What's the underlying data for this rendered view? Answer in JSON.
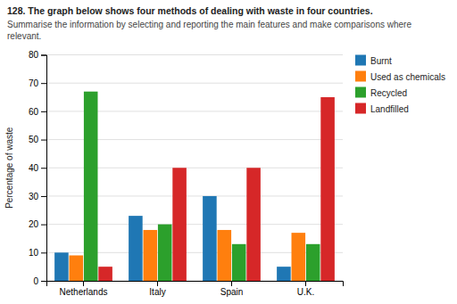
{
  "chart_data": {
    "type": "bar",
    "title": "128. The graph below shows four methods of dealing with waste in four countries.",
    "subtitle": "Summarise the information by selecting and reporting the main features and make comparisons where relevant.",
    "y_label": "Percentage of waste",
    "categories": [
      "Netherlands",
      "Italy",
      "Spain",
      "U.K."
    ],
    "series": [
      {
        "name": "Burnt",
        "values": [
          10,
          23,
          30,
          5
        ]
      },
      {
        "name": "Used as chemicals",
        "values": [
          9,
          18,
          18,
          17
        ]
      },
      {
        "name": "Recycled",
        "values": [
          67,
          20,
          13,
          13
        ]
      },
      {
        "name": "Landfilled",
        "values": [
          5,
          40,
          40,
          65
        ]
      }
    ],
    "ylim": [
      0,
      80
    ],
    "yticks": [
      0,
      10,
      20,
      30,
      40,
      50,
      60,
      70,
      80
    ],
    "grid": true,
    "legend": "right"
  }
}
